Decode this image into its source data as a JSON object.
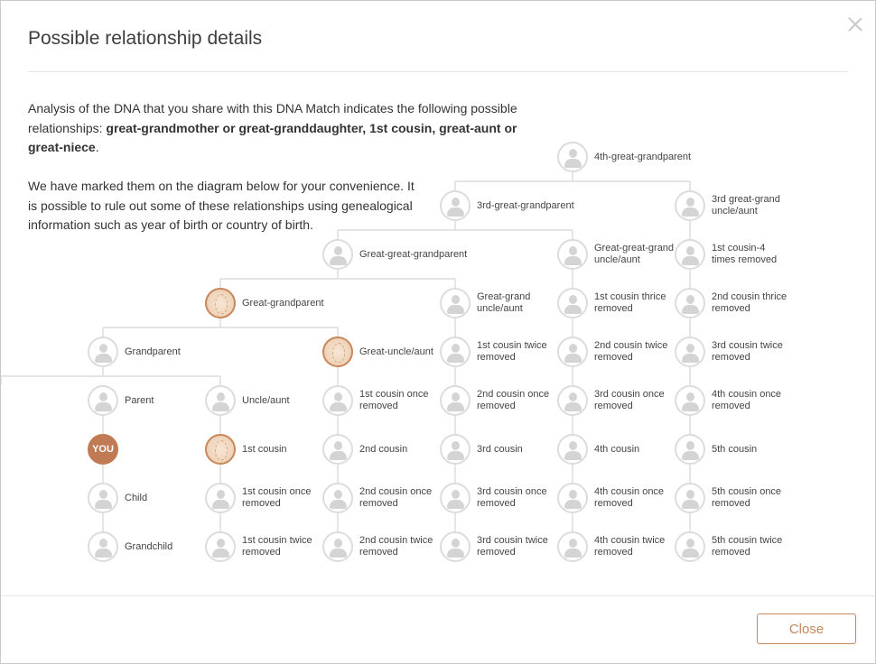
{
  "dialog": {
    "title": "Possible relationship details",
    "close_icon": "close-icon",
    "close_label": "Close",
    "accent_color": "#c07b55"
  },
  "intro": {
    "lead": "Analysis of the DNA that you share with this DNA Match indicates the following possible relationships: ",
    "relationships": "great-grandmother or great-granddaughter, 1st cousin, great-aunt or great-niece",
    "tail": ".",
    "note": "We have marked them on the diagram below for your convenience. It is possible to rule out some of these relationships using genealogical information such as year of birth or country of birth."
  },
  "tree": {
    "nodes": [
      {
        "id": "gggg",
        "label": "4th-great-grandparent",
        "state": "empty"
      },
      {
        "id": "ggg",
        "label": "3rd-great-grandparent",
        "state": "empty"
      },
      {
        "id": "3ggua",
        "label": "3rd great-grand uncle/aunt",
        "state": "empty"
      },
      {
        "id": "gg",
        "label": "Great-great-grandparent",
        "state": "empty"
      },
      {
        "id": "ggua",
        "label": "Great-great-grand uncle/aunt",
        "state": "empty"
      },
      {
        "id": "c1r4",
        "label": "1st cousin-4 times removed",
        "state": "empty"
      },
      {
        "id": "g",
        "label": "Great-grandparent",
        "state": "marked"
      },
      {
        "id": "gua",
        "label": "Great-grand uncle/aunt",
        "state": "empty"
      },
      {
        "id": "c1r3",
        "label": "1st cousin thrice removed",
        "state": "empty"
      },
      {
        "id": "c2r3",
        "label": "2nd cousin thrice removed",
        "state": "empty"
      },
      {
        "id": "gp",
        "label": "Grandparent",
        "state": "empty"
      },
      {
        "id": "gau",
        "label": "Great-uncle/aunt",
        "state": "marked"
      },
      {
        "id": "c1r2",
        "label": "1st cousin twice removed",
        "state": "empty"
      },
      {
        "id": "c2r2",
        "label": "2nd cousin twice removed",
        "state": "empty"
      },
      {
        "id": "c3r2",
        "label": "3rd cousin twice removed",
        "state": "empty"
      },
      {
        "id": "p",
        "label": "Parent",
        "state": "empty"
      },
      {
        "id": "ua",
        "label": "Uncle/aunt",
        "state": "empty"
      },
      {
        "id": "c1r1",
        "label": "1st cousin once removed",
        "state": "empty"
      },
      {
        "id": "c2r1",
        "label": "2nd cousin once removed",
        "state": "empty"
      },
      {
        "id": "c3r1",
        "label": "3rd cousin once removed",
        "state": "empty"
      },
      {
        "id": "c4r1",
        "label": "4th cousin once removed",
        "state": "empty"
      },
      {
        "id": "you",
        "label": "",
        "state": "you",
        "badge": "YOU"
      },
      {
        "id": "c1",
        "label": "1st cousin",
        "state": "marked"
      },
      {
        "id": "c2",
        "label": "2nd cousin",
        "state": "empty"
      },
      {
        "id": "c3",
        "label": "3rd cousin",
        "state": "empty"
      },
      {
        "id": "c4",
        "label": "4th cousin",
        "state": "empty"
      },
      {
        "id": "c5",
        "label": "5th cousin",
        "state": "empty"
      },
      {
        "id": "child",
        "label": "Child",
        "state": "empty"
      },
      {
        "id": "c1d1",
        "label": "1st cousin once removed",
        "state": "empty"
      },
      {
        "id": "c2d1",
        "label": "2nd cousin once removed",
        "state": "empty"
      },
      {
        "id": "c3d1",
        "label": "3rd cousin once removed",
        "state": "empty"
      },
      {
        "id": "c4d1",
        "label": "4th cousin once removed",
        "state": "empty"
      },
      {
        "id": "c5d1",
        "label": "5th cousin once removed",
        "state": "empty"
      },
      {
        "id": "gchild",
        "label": "Grandchild",
        "state": "empty"
      },
      {
        "id": "c1d2",
        "label": "1st cousin twice removed",
        "state": "empty"
      },
      {
        "id": "c2d2",
        "label": "2nd cousin twice removed",
        "state": "empty"
      },
      {
        "id": "c3d2",
        "label": "3rd cousin twice removed",
        "state": "empty"
      },
      {
        "id": "c4d2",
        "label": "4th cousin twice removed",
        "state": "empty"
      },
      {
        "id": "c5d2",
        "label": "5th cousin twice removed",
        "state": "empty"
      }
    ]
  }
}
